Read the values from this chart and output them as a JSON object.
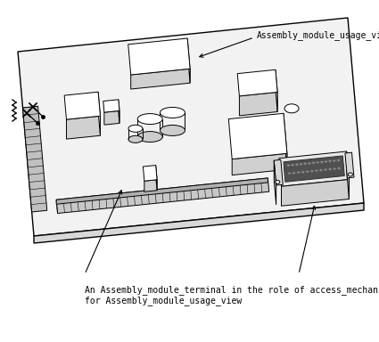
{
  "bg_color": "#ffffff",
  "label_top": "Assembly_module_usage_view",
  "label_bottom_line1": "An Assembly_module_terminal in the role of access_mechanism",
  "label_bottom_line2": "for Assembly_module_usage_view",
  "label_fontsize": 7.0,
  "ec": "#000000",
  "lw": 0.7
}
